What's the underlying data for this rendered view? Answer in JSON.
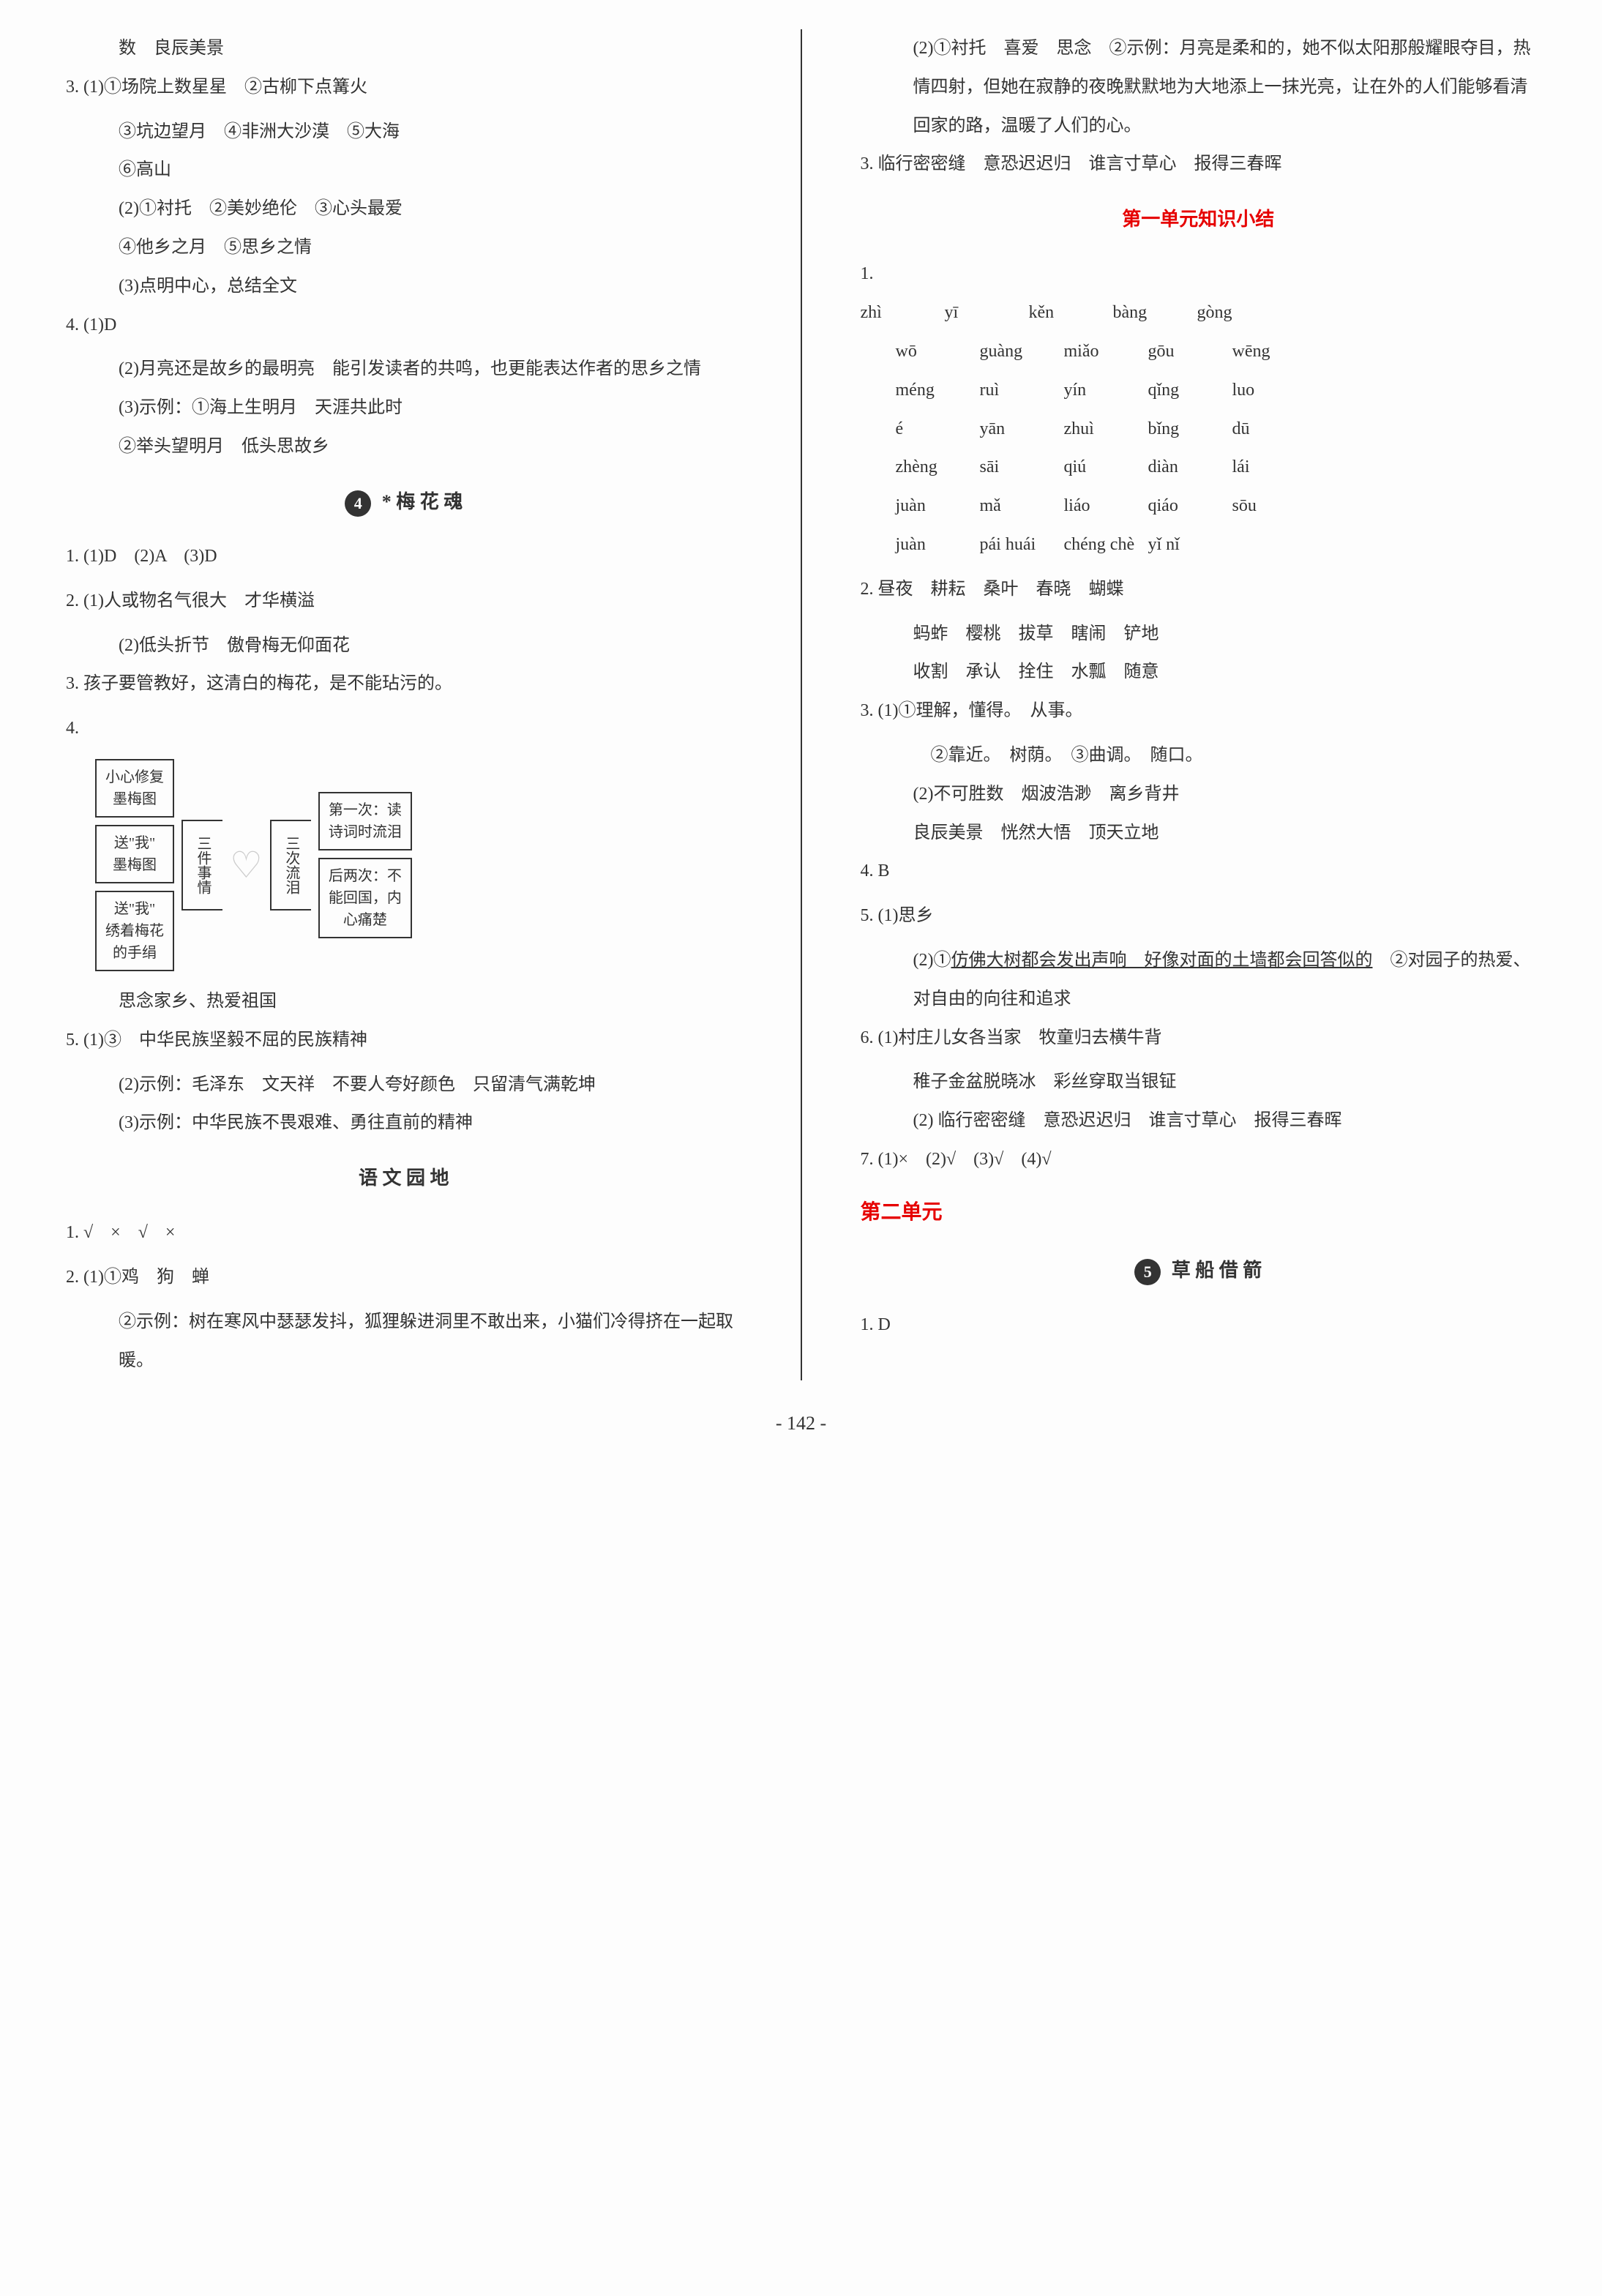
{
  "left": {
    "line1": "数　良辰美景",
    "q3_1": "3. (1)①场院上数星星　②古柳下点篝火",
    "q3_2": "③坑边望月　④非洲大沙漠　⑤大海",
    "q3_3": "⑥高山",
    "q3_4": "(2)①衬托　②美妙绝伦　③心头最爱",
    "q3_5": "④他乡之月　⑤思乡之情",
    "q3_6": "(3)点明中心，总结全文",
    "q4_1": "4. (1)D",
    "q4_2": "(2)月亮还是故乡的最明亮　能引发读者的共鸣，也更能表达作者的思乡之情",
    "q4_3": "(3)示例：①海上生明月　天涯共此时",
    "q4_4": "②举头望明月　低头思故乡",
    "section4_num": "4",
    "section4_title": "* 梅 花 魂",
    "s4_q1": "1. (1)D　(2)A　(3)D",
    "s4_q2_1": "2. (1)人或物名气很大　才华横溢",
    "s4_q2_2": "(2)低头折节　傲骨梅无仰面花",
    "s4_q3": "3. 孩子要管教好，这清白的梅花，是不能玷污的。",
    "s4_q4": "4.",
    "diagram": {
      "box1": "小心修复\n墨梅图",
      "box2": "送\"我\"\n墨梅图",
      "box3": "送\"我\"\n绣着梅花\n的手绢",
      "bracket1": "三件事情",
      "bracket2": "三次流泪",
      "box4": "第一次：读\n诗词时流泪",
      "box5": "后两次：不\n能回国，内\n心痛楚"
    },
    "s4_q4_end": "思念家乡、热爱祖国",
    "s4_q5_1": "5. (1)③　中华民族坚毅不屈的民族精神",
    "s4_q5_2": "(2)示例：毛泽东　文天祥　不要人夸好颜色　只留清气满乾坤",
    "s4_q5_3": "(3)示例：中华民族不畏艰难、勇往直前的精神",
    "yuandi_title": "语 文 园 地",
    "yd_q1": "1. √　×　√　×",
    "yd_q2_1": "2. (1)①鸡　狗　蝉",
    "yd_q2_2": "②示例：树在寒风中瑟瑟发抖，狐狸躲进洞里不敢出来，小猫们冷得挤在一起取暖。"
  },
  "right": {
    "yd_q2_3": "(2)①衬托　喜爱　思念　②示例：月亮是柔和的，她不似太阳那般耀眼夺目，热情四射，但她在寂静的夜晚默默地为大地添上一抹光亮，让在外的人们能够看清回家的路，温暖了人们的心。",
    "yd_q3": "3. 临行密密缝　意恐迟迟归　谁言寸草心　报得三春晖",
    "summary_title": "第一单元知识小结",
    "pinyin": [
      [
        "zhì",
        "yī",
        "kěn",
        "bàng",
        "gòng"
      ],
      [
        "wō",
        "guàng",
        "miǎo",
        "gōu",
        "wēng"
      ],
      [
        "méng",
        "ruì",
        "yín",
        "qǐng",
        "luo"
      ],
      [
        "é",
        "yān",
        "zhuì",
        "bǐng",
        "dū"
      ],
      [
        "zhèng",
        "sāi",
        "qiú",
        "diàn",
        "lái"
      ],
      [
        "juàn",
        "mǎ",
        "liáo",
        "qiáo",
        "sōu"
      ],
      [
        "juàn",
        "pái huái",
        "chéng chè",
        "yǐ nǐ",
        ""
      ]
    ],
    "sm_q2_1": "2. 昼夜　耕耘　桑叶　春晓　蝴蝶",
    "sm_q2_2": "蚂蚱　樱桃　拔草　瞎闹　铲地",
    "sm_q2_3": "收割　承认　拴住　水瓢　随意",
    "sm_q3_1": "3. (1)①理解，懂得。　从事。",
    "sm_q3_2": "②靠近。　树荫。　③曲调。　随口。",
    "sm_q3_3": "(2)不可胜数　烟波浩渺　离乡背井",
    "sm_q3_4": "良辰美景　恍然大悟　顶天立地",
    "sm_q4": "4. B",
    "sm_q5_1": "5. (1)思乡",
    "sm_q5_2a": "(2)①",
    "sm_q5_2b": "仿佛大树都会发出声响　好像对面的土墙都会回答似的",
    "sm_q5_2c": "　②对园子的热爱、对自由的向往和追求",
    "sm_q6_1": "6. (1)村庄儿女各当家　牧童归去横牛背",
    "sm_q6_2": "稚子金盆脱晓冰　彩丝穿取当银钲",
    "sm_q6_3": "(2) 临行密密缝　意恐迟迟归　谁言寸草心　报得三春晖",
    "sm_q7": "7. (1)×　(2)√　(3)√　(4)√",
    "unit2": "第二单元",
    "section5_num": "5",
    "section5_title": "草 船 借 箭",
    "s5_q1": "1. D"
  },
  "page_num": "- 142 -"
}
